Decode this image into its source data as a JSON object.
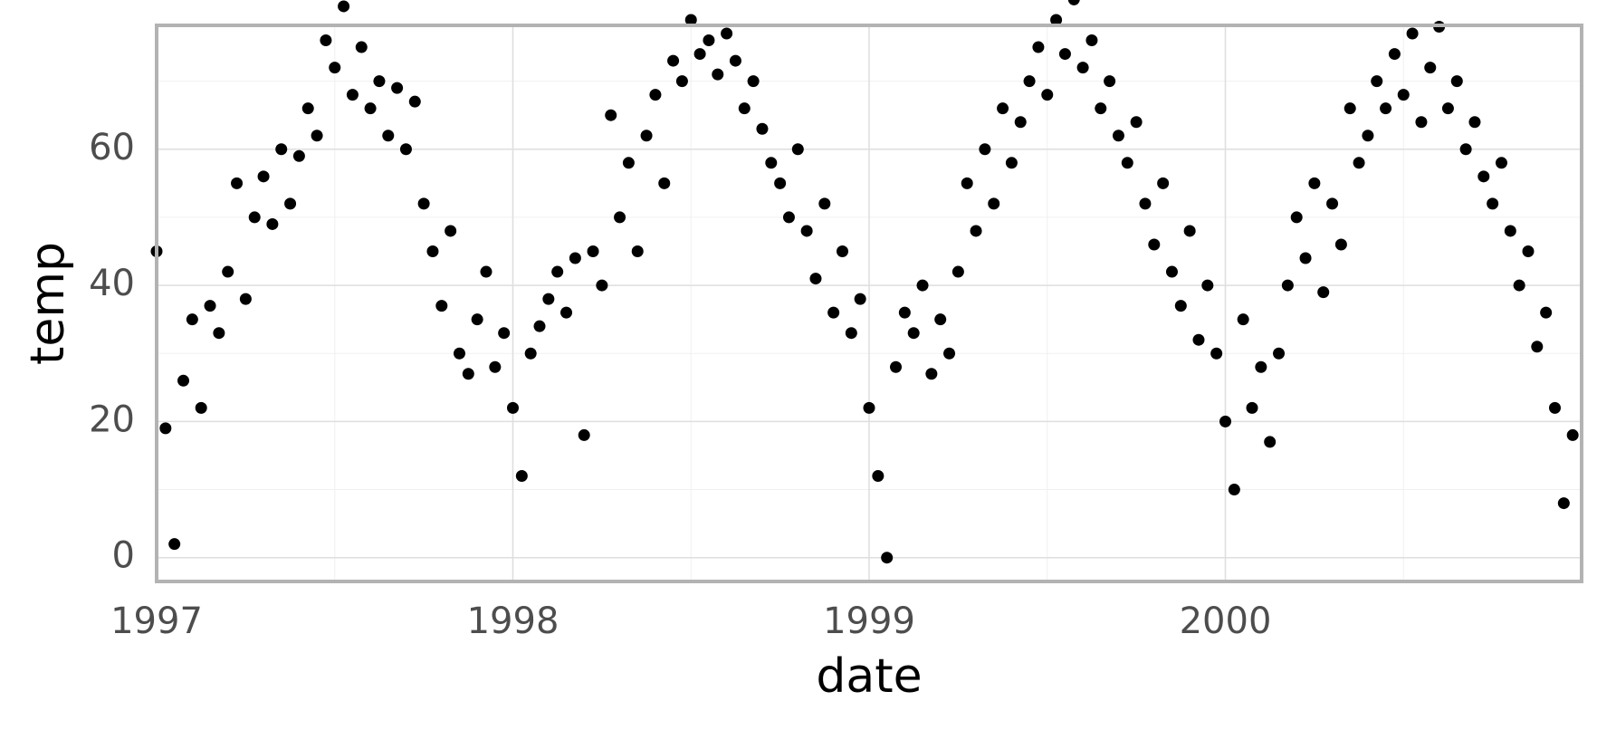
{
  "chart_data": {
    "type": "scatter",
    "x_label": "date",
    "y_label": "temp",
    "color": "#000000",
    "grid": true,
    "xlim": [
      1997,
      2001
    ],
    "ylim": [
      -3.5,
      78.2
    ],
    "xticks": [
      1997,
      1998,
      1999,
      2000
    ],
    "yticks": [
      0,
      20,
      40,
      60
    ],
    "xminor": [
      1997.5,
      1998.5,
      1999.5,
      2000.5
    ],
    "yminor": [
      10,
      30,
      50,
      70
    ],
    "x": [
      1997.0,
      1997.025,
      1997.05,
      1997.075,
      1997.1,
      1997.125,
      1997.15,
      1997.175,
      1997.2,
      1997.225,
      1997.25,
      1997.275,
      1997.3,
      1997.325,
      1997.35,
      1997.375,
      1997.4,
      1997.425,
      1997.45,
      1997.475,
      1997.5,
      1997.525,
      1997.55,
      1997.575,
      1997.6,
      1997.625,
      1997.65,
      1997.675,
      1997.7,
      1997.725,
      1997.75,
      1997.775,
      1997.8,
      1997.825,
      1997.85,
      1997.875,
      1997.9,
      1997.925,
      1997.95,
      1997.975,
      1998.0,
      1998.025,
      1998.05,
      1998.075,
      1998.1,
      1998.125,
      1998.15,
      1998.175,
      1998.2,
      1998.225,
      1998.25,
      1998.275,
      1998.3,
      1998.325,
      1998.35,
      1998.375,
      1998.4,
      1998.425,
      1998.45,
      1998.475,
      1998.5,
      1998.525,
      1998.55,
      1998.575,
      1998.6,
      1998.625,
      1998.65,
      1998.675,
      1998.7,
      1998.725,
      1998.75,
      1998.775,
      1998.8,
      1998.825,
      1998.85,
      1998.875,
      1998.9,
      1998.925,
      1998.95,
      1998.975,
      1999.0,
      1999.025,
      1999.05,
      1999.075,
      1999.1,
      1999.125,
      1999.15,
      1999.175,
      1999.2,
      1999.225,
      1999.25,
      1999.275,
      1999.3,
      1999.325,
      1999.35,
      1999.375,
      1999.4,
      1999.425,
      1999.45,
      1999.475,
      1999.5,
      1999.525,
      1999.55,
      1999.575,
      1999.6,
      1999.625,
      1999.65,
      1999.675,
      1999.7,
      1999.725,
      1999.75,
      1999.775,
      1999.8,
      1999.825,
      1999.85,
      1999.875,
      1999.9,
      1999.925,
      1999.95,
      1999.975,
      2000.0,
      2000.025,
      2000.05,
      2000.075,
      2000.1,
      2000.125,
      2000.15,
      2000.175,
      2000.2,
      2000.225,
      2000.25,
      2000.275,
      2000.3,
      2000.325,
      2000.35,
      2000.375,
      2000.4,
      2000.425,
      2000.45,
      2000.475,
      2000.5,
      2000.525,
      2000.55,
      2000.575,
      2000.6,
      2000.625,
      2000.65,
      2000.675,
      2000.7,
      2000.725,
      2000.75,
      2000.775,
      2000.8,
      2000.825,
      2000.85,
      2000.875,
      2000.9,
      2000.925,
      2000.95,
      2000.975
    ],
    "values": [
      45,
      19,
      2,
      26,
      35,
      22,
      37,
      33,
      42,
      55,
      38,
      50,
      56,
      49,
      60,
      52,
      59,
      66,
      62,
      76,
      72,
      81,
      68,
      75,
      66,
      70,
      62,
      69,
      60,
      67,
      52,
      45,
      37,
      48,
      30,
      27,
      35,
      42,
      28,
      33,
      22,
      12,
      30,
      34,
      38,
      42,
      36,
      44,
      18,
      45,
      40,
      65,
      50,
      58,
      45,
      62,
      68,
      55,
      73,
      70,
      79,
      74,
      76,
      71,
      77,
      73,
      66,
      70,
      63,
      58,
      55,
      50,
      60,
      48,
      41,
      52,
      36,
      45,
      33,
      38,
      22,
      12,
      0,
      28,
      36,
      33,
      40,
      27,
      35,
      30,
      42,
      55,
      48,
      60,
      52,
      66,
      58,
      64,
      70,
      75,
      68,
      79,
      74,
      82,
      72,
      76,
      66,
      70,
      62,
      58,
      64,
      52,
      46,
      55,
      42,
      37,
      48,
      32,
      40,
      30,
      20,
      10,
      35,
      22,
      28,
      17,
      30,
      40,
      50,
      44,
      55,
      39,
      52,
      46,
      66,
      58,
      62,
      70,
      66,
      74,
      68,
      77,
      64,
      72,
      78,
      66,
      70,
      60,
      64,
      56,
      52,
      58,
      48,
      40,
      45,
      31,
      36,
      22,
      8,
      18
    ]
  }
}
